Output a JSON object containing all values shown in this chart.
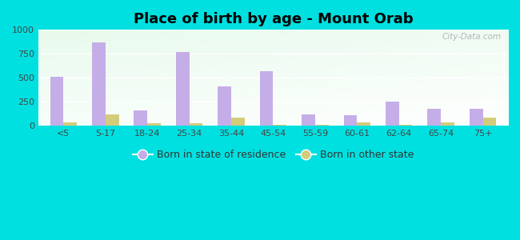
{
  "title": "Place of birth by age - Mount Orab",
  "categories": [
    "<5",
    "5-17",
    "18-24",
    "25-34",
    "35-44",
    "45-54",
    "55-59",
    "60-61",
    "62-64",
    "65-74",
    "75+"
  ],
  "born_in_state": [
    510,
    870,
    160,
    770,
    415,
    570,
    120,
    110,
    255,
    175,
    175
  ],
  "born_other_state": [
    35,
    120,
    30,
    25,
    85,
    15,
    15,
    40,
    15,
    40,
    90
  ],
  "bar_color_state": "#c5aee8",
  "bar_color_other": "#d4cc7a",
  "background_outer": "#00e0e0",
  "ylim": [
    0,
    1000
  ],
  "yticks": [
    0,
    250,
    500,
    750,
    1000
  ],
  "legend_labels": [
    "Born in state of residence",
    "Born in other state"
  ],
  "title_fontsize": 13,
  "tick_fontsize": 8,
  "legend_fontsize": 9,
  "bar_width": 0.32,
  "watermark": "City-Data.com",
  "grad_top_color": "#edfaed",
  "grad_bottom_color": "#c8e8d0"
}
